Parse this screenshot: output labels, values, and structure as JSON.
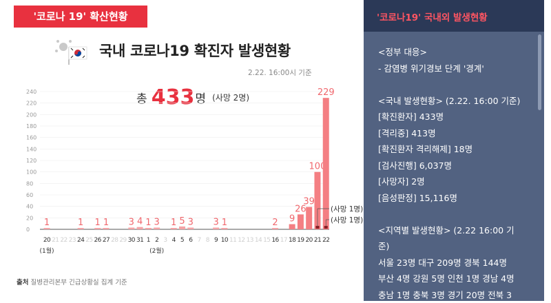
{
  "left_panel": {
    "badge": "'코로나 19' 확산현황",
    "title": "국내 코로나19 확진자 발생현황",
    "as_of": "2.22. 16:00시 기준",
    "total_prefix": "총",
    "total_value": "433",
    "total_unit": "명",
    "total_death": "(사망 2명)",
    "source_label": "출처",
    "source_text": "질병관리본부 긴급상황실 집계 기준"
  },
  "chart_data": {
    "type": "bar",
    "title": "국내 코로나19 확진자 발생현황",
    "ylim": [
      0,
      240
    ],
    "yticks": [
      "0",
      "20",
      "40",
      "60",
      "80",
      "100",
      "120",
      "140",
      "160",
      "180",
      "200",
      "220",
      "240"
    ],
    "categories": [
      "20",
      "21",
      "22",
      "23",
      "24",
      "25",
      "26",
      "27",
      "28",
      "29",
      "30",
      "31",
      "1",
      "2",
      "3",
      "4",
      "5",
      "6",
      "7",
      "8",
      "9",
      "10",
      "11",
      "12",
      "13",
      "14",
      "15",
      "16",
      "17",
      "18",
      "19",
      "20",
      "21",
      "22"
    ],
    "values": [
      1,
      0,
      0,
      0,
      1,
      0,
      1,
      1,
      0,
      0,
      3,
      4,
      1,
      3,
      0,
      1,
      5,
      3,
      0,
      0,
      3,
      1,
      0,
      0,
      0,
      0,
      0,
      2,
      0,
      9,
      26,
      39,
      100,
      229
    ],
    "value_labels": [
      "1",
      "",
      "",
      "",
      "1",
      "",
      "1",
      "1",
      "",
      "",
      "3",
      "4",
      "1",
      "3",
      "",
      "1",
      "5",
      "3",
      "",
      "",
      "3",
      "1",
      "",
      "",
      "",
      "",
      "",
      "2",
      "",
      "9",
      "26",
      "39",
      "100",
      "229"
    ],
    "month_labels": [
      "(1월)",
      "(2월)"
    ],
    "deaths": [
      {
        "category_index": 32,
        "label": "(사망 1명)"
      },
      {
        "category_index": 33,
        "label": "(사망 1명)"
      }
    ],
    "colors": {
      "bar": "#f4a3a6",
      "bar_strong": "#f47f83",
      "label": "#f0676d",
      "tick_muted": "#cfcfcf",
      "tick": "#333333",
      "grid": "#eeeeee"
    }
  },
  "right_panel": {
    "title": "'코로나19' 국내외 발생현황",
    "lines": [
      "<정부 대응>",
      "- 감염병 위기경보 단계 '경계'",
      "",
      "<국내 발생현황> (2.22. 16:00 기준)",
      "[확진환자] 433명",
      "[격리중] 413명",
      "[확진환자 격리해제] 18명",
      "[검사진행] 6,037명",
      "[사망자] 2명",
      "[음성판정] 15,116명",
      "",
      "<지역별 발생현황> (2.22 16:00 기",
      "준)",
      "서울 23명 대구 209명 경북 144명",
      "부산 4명 강원 5명 인천 1명 경남 4명",
      "충남 1명 충북 3명 경기 20명 전북 3"
    ]
  },
  "colors": {
    "accent": "#e8313f",
    "panel": "#526281",
    "panel_header": "#2b3957",
    "panel_title": "#ff5562"
  }
}
